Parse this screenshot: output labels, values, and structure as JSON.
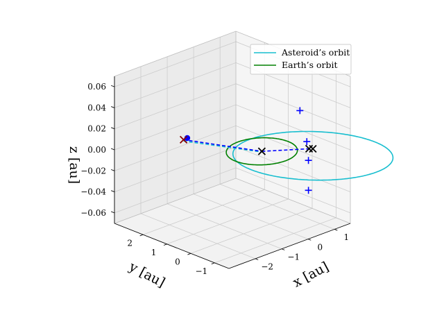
{
  "chart_data": {
    "type": "line",
    "projection": "3d",
    "title": "",
    "xlabel": "x [au]",
    "ylabel": "y [au]",
    "zlabel": "z [au]",
    "xlim": [
      -3.0,
      1.6
    ],
    "ylim": [
      -1.6,
      3.2
    ],
    "zlim": [
      -0.07,
      0.07
    ],
    "xticks": [
      -2,
      -1,
      0,
      1
    ],
    "xtick_labels": [
      "−2",
      "−1",
      "0",
      "1"
    ],
    "yticks": [
      -1,
      0,
      1,
      2
    ],
    "ytick_labels": [
      "−1",
      "0",
      "1",
      "2"
    ],
    "zticks": [
      -0.06,
      -0.04,
      -0.02,
      0.0,
      0.02,
      0.04,
      0.06
    ],
    "ztick_labels": [
      "−0.06",
      "−0.04",
      "−0.02",
      "0.00",
      "0.02",
      "0.04",
      "0.06"
    ],
    "grid": true,
    "legend_position": "top-right",
    "colors": {
      "asteroid_orbit": "#17becf",
      "earth_orbit": "#008000",
      "transfer": "#0000ff",
      "markers": "#000000",
      "asteroid_marker": "#8b0000",
      "pane": "#f2f2f2",
      "grid": "#cccccc"
    },
    "series": [
      {
        "name": "Asteroid’s orbit",
        "kind": "ellipse",
        "semi_major_axis": 2.3,
        "eccentricity": 0.565,
        "inclination_z_amplitude": 0.002
      },
      {
        "name": "Earth’s orbit",
        "kind": "circle",
        "radius": 1.0
      }
    ],
    "transfer_segments": [
      {
        "from": [
          -1.15,
          2.35,
          0.0
        ],
        "to": [
          -0.2,
          0.12,
          0.0
        ]
      },
      {
        "from": [
          -0.2,
          0.12,
          0.0
        ],
        "to": [
          0.85,
          -0.7,
          0.0
        ]
      }
    ],
    "dashed_cyan_segment": {
      "from": [
        -1.15,
        2.35,
        0.0
      ],
      "to": [
        -0.2,
        0.12,
        0.0
      ]
    },
    "x_markers": [
      [
        -0.2,
        0.12,
        0.0
      ],
      [
        0.85,
        -0.7,
        0.0
      ],
      [
        0.92,
        -0.78,
        0.0
      ],
      [
        -1.15,
        2.35,
        0.0
      ]
    ],
    "dot_marker": [
      -1.1,
      2.25,
      0.002
    ],
    "plus_markers": [
      [
        1.0,
        -0.15,
        0.03
      ],
      [
        0.9,
        -0.55,
        0.005
      ],
      [
        0.78,
        -0.75,
        -0.01
      ],
      [
        0.6,
        -0.95,
        -0.035
      ]
    ]
  }
}
